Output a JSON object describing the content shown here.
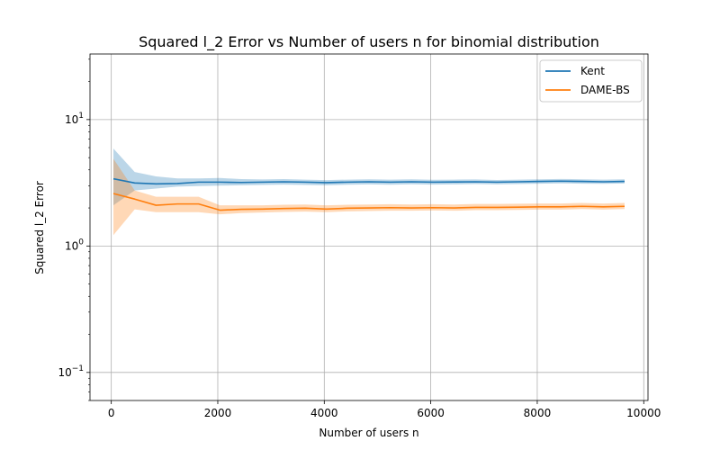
{
  "chart_data": {
    "type": "line",
    "title": "Squared l_2 Error vs Number of users n for binomial distribution",
    "xlabel": "Number of users n",
    "ylabel": "Squared l_2 Error",
    "xlim": [
      -400,
      10080
    ],
    "ylim": [
      0.06,
      33
    ],
    "yscale": "log",
    "grid": true,
    "legend_position": "top-right",
    "x_ticks": [
      {
        "value": 0,
        "label": "0"
      },
      {
        "value": 2000,
        "label": "2000"
      },
      {
        "value": 4000,
        "label": "4000"
      },
      {
        "value": 6000,
        "label": "6000"
      },
      {
        "value": 8000,
        "label": "8000"
      },
      {
        "value": 10000,
        "label": "10000"
      }
    ],
    "y_ticks": [
      {
        "value": 0.1,
        "base": "10",
        "exp": "−1"
      },
      {
        "value": 1,
        "base": "10",
        "exp": "0"
      },
      {
        "value": 10,
        "base": "10",
        "exp": "1"
      }
    ],
    "x": [
      40,
      440,
      840,
      1240,
      1640,
      2040,
      2440,
      2840,
      3240,
      3640,
      4040,
      4440,
      4840,
      5240,
      5640,
      6040,
      6440,
      6840,
      7240,
      7640,
      8040,
      8440,
      8840,
      9240,
      9640
    ],
    "series": [
      {
        "name": "Kent",
        "color": "#1f77b4",
        "values": [
          3.4,
          3.15,
          3.1,
          3.12,
          3.2,
          3.2,
          3.18,
          3.2,
          3.22,
          3.2,
          3.17,
          3.2,
          3.22,
          3.2,
          3.22,
          3.2,
          3.21,
          3.22,
          3.2,
          3.22,
          3.24,
          3.26,
          3.24,
          3.22,
          3.24
        ],
        "lower": [
          2.1,
          2.75,
          2.85,
          2.95,
          2.98,
          3.0,
          3.02,
          3.04,
          3.06,
          3.04,
          3.02,
          3.05,
          3.07,
          3.05,
          3.08,
          3.06,
          3.07,
          3.09,
          3.07,
          3.09,
          3.11,
          3.13,
          3.11,
          3.1,
          3.12
        ],
        "upper": [
          5.9,
          3.85,
          3.55,
          3.42,
          3.42,
          3.45,
          3.38,
          3.36,
          3.38,
          3.35,
          3.32,
          3.35,
          3.37,
          3.35,
          3.37,
          3.34,
          3.35,
          3.36,
          3.33,
          3.35,
          3.37,
          3.39,
          3.37,
          3.35,
          3.37
        ]
      },
      {
        "name": "DAME-BS",
        "color": "#ff7f0e",
        "values": [
          2.6,
          2.35,
          2.1,
          2.15,
          2.15,
          1.92,
          1.95,
          1.96,
          1.98,
          1.99,
          1.96,
          1.99,
          2.0,
          2.01,
          2.0,
          2.01,
          2.0,
          2.02,
          2.02,
          2.03,
          2.04,
          2.04,
          2.06,
          2.04,
          2.06
        ],
        "lower": [
          1.22,
          1.95,
          1.85,
          1.85,
          1.85,
          1.78,
          1.82,
          1.84,
          1.86,
          1.87,
          1.85,
          1.88,
          1.89,
          1.9,
          1.9,
          1.91,
          1.9,
          1.92,
          1.92,
          1.93,
          1.94,
          1.94,
          1.96,
          1.94,
          1.96
        ],
        "upper": [
          4.9,
          2.75,
          2.45,
          2.45,
          2.45,
          2.1,
          2.1,
          2.1,
          2.12,
          2.13,
          2.1,
          2.12,
          2.13,
          2.14,
          2.13,
          2.14,
          2.13,
          2.15,
          2.15,
          2.16,
          2.17,
          2.17,
          2.19,
          2.17,
          2.19
        ]
      }
    ]
  }
}
